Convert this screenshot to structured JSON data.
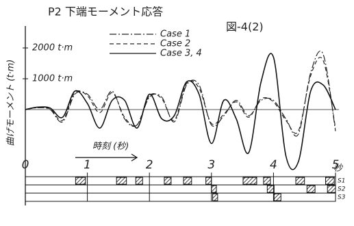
{
  "chart_data": {
    "type": "line",
    "title": "P2 下端モーメント応答",
    "figure_label": "図-4(2)",
    "x_label": "時刻 (秒)",
    "x_unit": "秒",
    "y_label": "曲げモーメント (t·m)",
    "x": [
      0,
      0.2,
      0.4,
      0.6,
      0.8,
      1.0,
      1.2,
      1.4,
      1.6,
      1.8,
      2.0,
      2.2,
      2.4,
      2.6,
      2.8,
      3.0,
      3.2,
      3.4,
      3.6,
      3.8,
      4.0,
      4.2,
      4.4,
      4.6,
      4.8,
      5.0
    ],
    "xlim": [
      0,
      5
    ],
    "xticks": [
      0,
      1,
      2,
      3,
      4,
      5
    ],
    "ylim": [
      -2000,
      2600
    ],
    "yticks": [
      {
        "value": 1000,
        "label": "1000 t·m"
      },
      {
        "value": 2000,
        "label": "2000 t·m"
      }
    ],
    "series": [
      {
        "name": "Case 1",
        "color": "#222",
        "dash": "10 3 2 3",
        "values": [
          0,
          60,
          0,
          -400,
          500,
          500,
          0,
          600,
          -300,
          -500,
          400,
          400,
          -400,
          800,
          800,
          -500,
          -200,
          300,
          -200,
          300,
          300,
          -300,
          -800,
          1200,
          1800,
          -700
        ]
      },
      {
        "name": "Case 2",
        "color": "#222",
        "dash": "6 4",
        "values": [
          0,
          70,
          20,
          -350,
          550,
          450,
          -100,
          550,
          -250,
          -500,
          450,
          350,
          -350,
          850,
          700,
          -450,
          -150,
          250,
          -250,
          350,
          250,
          -350,
          -700,
          1100,
          1600,
          -600
        ]
      },
      {
        "name": "Case 3, 4",
        "color": "#111",
        "dash": "",
        "values": [
          0,
          80,
          50,
          -250,
          600,
          200,
          -600,
          300,
          300,
          -600,
          500,
          -300,
          -200,
          900,
          500,
          -1100,
          300,
          -300,
          -1400,
          900,
          1700,
          -1500,
          -1700,
          600,
          800,
          0
        ]
      }
    ],
    "status_rows": [
      {
        "label": "S1",
        "intervals": [
          [
            0.81,
            0.97
          ],
          [
            1.47,
            1.63
          ],
          [
            1.78,
            1.89
          ],
          [
            2.24,
            2.35
          ],
          [
            2.55,
            2.68
          ],
          [
            2.91,
            3.0
          ],
          [
            3.51,
            3.73
          ],
          [
            3.84,
            3.95
          ],
          [
            4.36,
            4.5
          ],
          [
            4.84,
            4.98
          ]
        ]
      },
      {
        "label": "S2",
        "intervals": [
          [
            3.0,
            3.08
          ],
          [
            3.9,
            4.01
          ],
          [
            4.54,
            4.67
          ],
          [
            4.87,
            5.0
          ]
        ]
      },
      {
        "label": "S3",
        "intervals": [
          [
            3.02,
            3.1
          ],
          [
            4.01,
            4.12
          ]
        ]
      }
    ]
  }
}
